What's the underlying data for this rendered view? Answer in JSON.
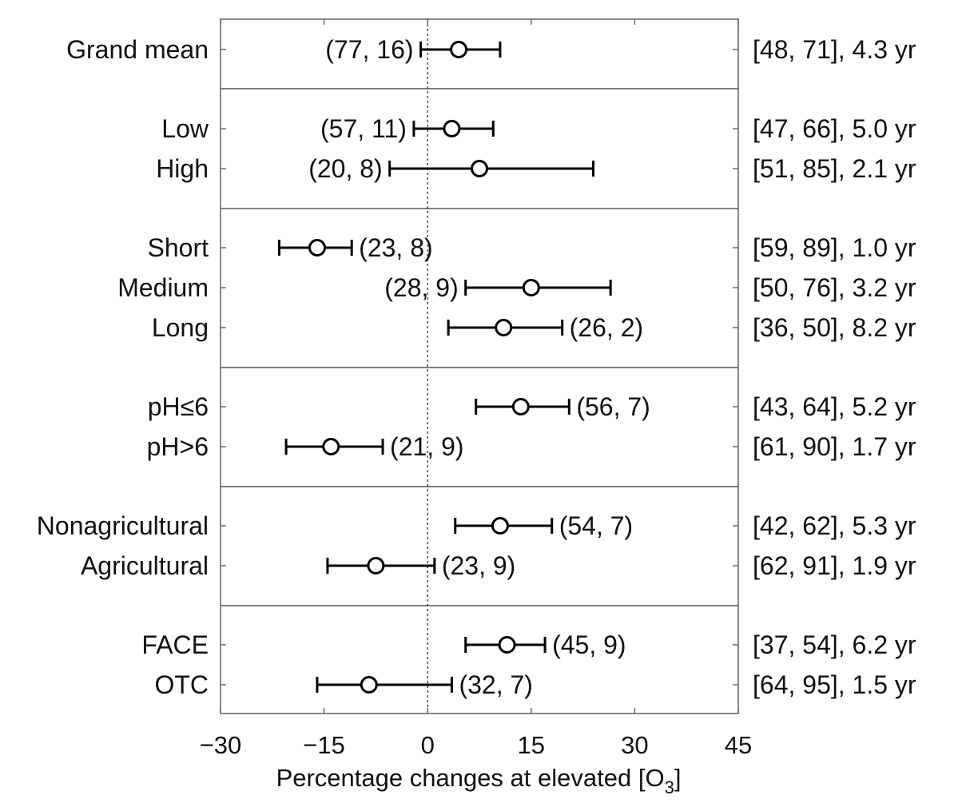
{
  "chart_data": {
    "type": "forest",
    "title": "",
    "xlabel": {
      "main": "Percentage changes at elevated [O",
      "subscript": "3",
      "closing": "]"
    },
    "ylabel": "",
    "xlim": [
      -30,
      45
    ],
    "xticks": [
      -30,
      -15,
      0,
      15,
      30,
      45
    ],
    "xtick_labels": [
      "−30",
      "−15",
      "0",
      "15",
      "30",
      "45"
    ],
    "reference_line": 0,
    "rows": [
      {
        "label": "Grand mean",
        "mean": 4.5,
        "lo": -1.0,
        "hi": 10.5,
        "n_label": "(77, 16)",
        "n_side": "left",
        "right_label": "[48, 71], 4.3 yr",
        "group": 0
      },
      {
        "label": "Low",
        "mean": 3.5,
        "lo": -2.0,
        "hi": 9.5,
        "n_label": "(57, 11)",
        "n_side": "left",
        "right_label": "[47, 66], 5.0 yr",
        "group": 1
      },
      {
        "label": "High",
        "mean": 7.5,
        "lo": -5.5,
        "hi": 24.0,
        "n_label": "(20, 8)",
        "n_side": "left",
        "right_label": "[51, 85], 2.1 yr",
        "group": 1
      },
      {
        "label": "Short",
        "mean": -16.0,
        "lo": -21.5,
        "hi": -11.0,
        "n_label": "(23, 8)",
        "n_side": "right",
        "right_label": "[59, 89], 1.0 yr",
        "group": 2
      },
      {
        "label": "Medium",
        "mean": 15.0,
        "lo": 5.5,
        "hi": 26.5,
        "n_label": "(28, 9)",
        "n_side": "left",
        "right_label": "[50, 76], 3.2 yr",
        "group": 2
      },
      {
        "label": "Long",
        "mean": 11.0,
        "lo": 3.0,
        "hi": 19.5,
        "n_label": "(26, 2)",
        "n_side": "right",
        "right_label": "[36, 50], 8.2 yr",
        "group": 2
      },
      {
        "label": "pH≤6",
        "mean": 13.5,
        "lo": 7.0,
        "hi": 20.5,
        "n_label": "(56, 7)",
        "n_side": "right",
        "right_label": "[43, 64], 5.2 yr",
        "group": 3
      },
      {
        "label": "pH>6",
        "mean": -14.0,
        "lo": -20.5,
        "hi": -6.5,
        "n_label": "(21, 9)",
        "n_side": "right",
        "right_label": "[61, 90], 1.7 yr",
        "group": 3
      },
      {
        "label": "Nonagricultural",
        "mean": 10.5,
        "lo": 4.0,
        "hi": 18.0,
        "n_label": "(54, 7)",
        "n_side": "right",
        "right_label": "[42, 62], 5.3 yr",
        "group": 4
      },
      {
        "label": "Agricultural",
        "mean": -7.5,
        "lo": -14.5,
        "hi": 1.0,
        "n_label": "(23, 9)",
        "n_side": "right",
        "right_label": "[62, 91], 1.9 yr",
        "group": 4
      },
      {
        "label": "FACE",
        "mean": 11.5,
        "lo": 5.5,
        "hi": 17.0,
        "n_label": "(45, 9)",
        "n_side": "right",
        "right_label": "[37, 54], 6.2 yr",
        "group": 5
      },
      {
        "label": "OTC",
        "mean": -8.5,
        "lo": -16.0,
        "hi": 3.5,
        "n_label": "(32, 7)",
        "n_side": "right",
        "right_label": "[64, 95], 1.5 yr",
        "group": 5
      }
    ],
    "grid": false,
    "legend": "none"
  },
  "colors": {
    "axis": "#555555",
    "marker_edge": "#000000",
    "marker_fill": "#ffffff",
    "text": "#111111"
  }
}
